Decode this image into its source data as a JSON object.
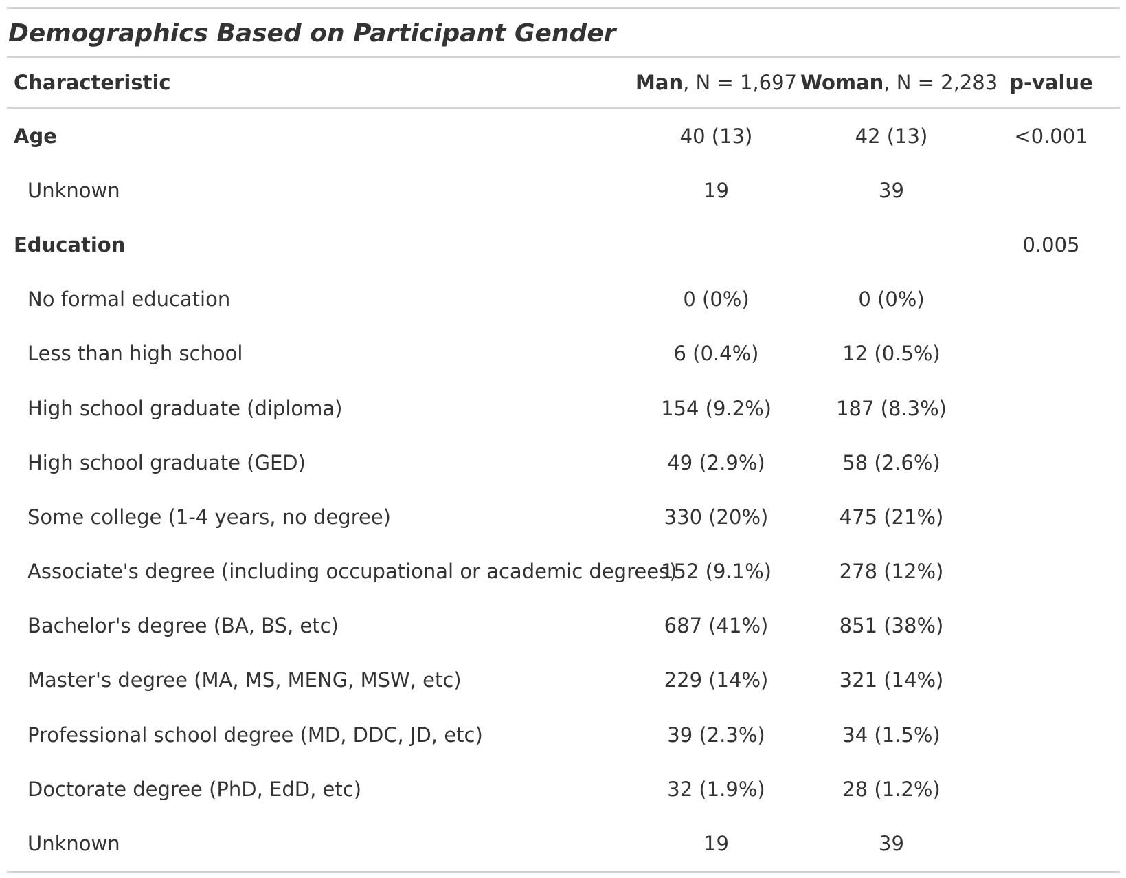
{
  "title": "Demographics Based on Participant Gender",
  "columns": {
    "characteristic": "Characteristic",
    "man_name": "Man",
    "man_n": ", N = 1,697",
    "woman_name": "Woman",
    "woman_n": ", N = 2,283",
    "pvalue": "p-value"
  },
  "rows": [
    {
      "label": "Age",
      "group": true,
      "man": "40 (13)",
      "woman": "42 (13)",
      "p": "<0.001"
    },
    {
      "label": "Unknown",
      "group": false,
      "man": "19",
      "woman": "39",
      "p": ""
    },
    {
      "label": "Education",
      "group": true,
      "man": "",
      "woman": "",
      "p": "0.005"
    },
    {
      "label": "No formal education",
      "group": false,
      "man": "0 (0%)",
      "woman": "0 (0%)",
      "p": ""
    },
    {
      "label": "Less than high school",
      "group": false,
      "man": "6 (0.4%)",
      "woman": "12 (0.5%)",
      "p": ""
    },
    {
      "label": "High school graduate (diploma)",
      "group": false,
      "man": "154 (9.2%)",
      "woman": "187 (8.3%)",
      "p": ""
    },
    {
      "label": "High school graduate (GED)",
      "group": false,
      "man": "49 (2.9%)",
      "woman": "58 (2.6%)",
      "p": ""
    },
    {
      "label": "Some college (1-4 years, no degree)",
      "group": false,
      "man": "330 (20%)",
      "woman": "475 (21%)",
      "p": ""
    },
    {
      "label": "Associate's degree (including occupational or academic degrees)",
      "group": false,
      "man": "152 (9.1%)",
      "woman": "278 (12%)",
      "p": ""
    },
    {
      "label": "Bachelor's degree (BA, BS, etc)",
      "group": false,
      "man": "687 (41%)",
      "woman": "851 (38%)",
      "p": ""
    },
    {
      "label": "Master's degree (MA, MS, MENG, MSW, etc)",
      "group": false,
      "man": "229 (14%)",
      "woman": "321 (14%)",
      "p": ""
    },
    {
      "label": "Professional school degree (MD, DDC, JD, etc)",
      "group": false,
      "man": "39 (2.3%)",
      "woman": "34 (1.5%)",
      "p": ""
    },
    {
      "label": "Doctorate degree (PhD, EdD, etc)",
      "group": false,
      "man": "32 (1.9%)",
      "woman": "28 (1.2%)",
      "p": ""
    },
    {
      "label": "Unknown",
      "group": false,
      "man": "19",
      "woman": "39",
      "p": ""
    }
  ]
}
